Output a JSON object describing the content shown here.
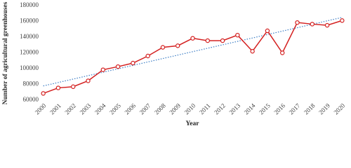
{
  "chart_data": {
    "type": "line",
    "x_label": "Year",
    "y_label": "Number of agricultural greenhouses",
    "categories": [
      "2000",
      "2001",
      "2002",
      "2003",
      "2004",
      "2005",
      "2006",
      "2007",
      "2008",
      "2009",
      "2010",
      "2011",
      "2012",
      "2013",
      "2014",
      "2015",
      "2016",
      "2017",
      "2018",
      "2019",
      "2020"
    ],
    "series": [
      {
        "color": "#d42020",
        "values": [
          68500,
          75500,
          77000,
          84500,
          98500,
          102500,
          107000,
          116000,
          127000,
          129000,
          138500,
          135500,
          135500,
          142500,
          122000,
          148000,
          120000,
          158500,
          156500,
          155000,
          161000
        ]
      }
    ],
    "trendline": {
      "color": "#3a7cc4",
      "values": [
        78000,
        165000
      ]
    },
    "ylim": [
      60000,
      180000
    ],
    "yticks": [
      60000,
      80000,
      100000,
      120000,
      140000,
      160000,
      180000
    ],
    "grid": false
  }
}
